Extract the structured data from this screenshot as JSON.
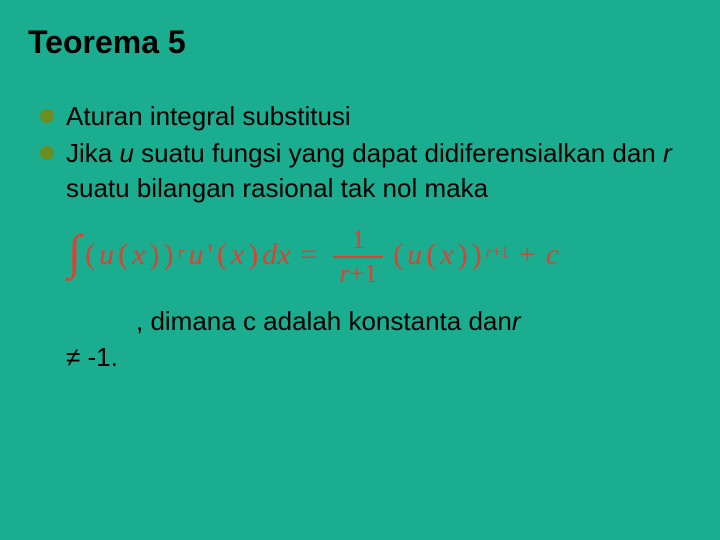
{
  "slide": {
    "background_color": "#1aad8f",
    "text_color": "#000000",
    "bullet_color": "#6b8e23",
    "formula_color": "#e04030",
    "title": "Teorema 5",
    "title_fontsize": 32,
    "body_fontsize": 26,
    "formula_fontsize": 30,
    "bullets": [
      {
        "text_prefix": "Aturan integral substitusi"
      },
      {
        "text_prefix": "Jika ",
        "italic_u": "u",
        "text_mid": " suatu fungsi yang dapat didiferensialkan dan ",
        "italic_r": "r",
        "text_suffix": " suatu bilangan rasional tak nol maka"
      }
    ],
    "formula": {
      "lhs_u": "u",
      "lhs_x": "x",
      "exp_r": "r",
      "uprime": "u",
      "uprime_x": "x",
      "dx": "dx",
      "frac_num": "1",
      "frac_den_r": "r",
      "frac_den_plus1": "+1",
      "rhs_u": "u",
      "rhs_x": "x",
      "rhs_exp_r": "r",
      "rhs_exp_plus1": "+1",
      "plus_c": "c"
    },
    "trailing": {
      "leadin": ", dimana c adalah konstanta dan   ",
      "italic_r": "r",
      "cond": "≠ -1."
    }
  }
}
